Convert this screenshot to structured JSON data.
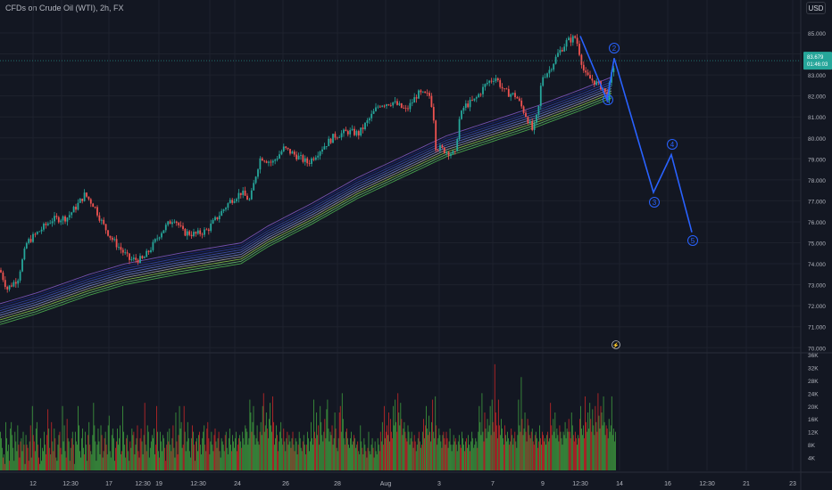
{
  "title": "CFDs on Crude Oil (WTI), 2h, FX",
  "currency": "USD",
  "colors": {
    "bg": "#131722",
    "up": "#26a69a",
    "down": "#ef5350",
    "vol_up": "#3e9a3e",
    "vol_down": "#c62828",
    "wave": "#2962ff",
    "grid": "#1e222d",
    "axis_text": "#b2b5be"
  },
  "price_axis": {
    "labels": [
      "85.000",
      "84.000",
      "83.000",
      "82.000",
      "81.000",
      "80.000",
      "79.000",
      "78.000",
      "77.000",
      "76.000",
      "75.000",
      "74.000",
      "73.000",
      "72.000",
      "71.000",
      "70.000"
    ],
    "current_price": "83.679",
    "current_time": "01:46:03"
  },
  "volume_axis": {
    "labels": [
      "36K",
      "32K",
      "28K",
      "24K",
      "20K",
      "16K",
      "12K",
      "8K",
      "4K"
    ]
  },
  "time_axis": [
    "12",
    "12:30",
    "17",
    "12:30",
    "19",
    "12:30",
    "24",
    "26",
    "28",
    "Aug",
    "3",
    "7",
    "9",
    "12:30",
    "14",
    "16",
    "12:30",
    "21",
    "23"
  ],
  "chart_data": [
    {
      "type": "candlestick",
      "title": "CFDs on Crude Oil (WTI), 2h, FX",
      "ylim": [
        70,
        85.5
      ],
      "price_path": [
        [
          0,
          73.7
        ],
        [
          8,
          72.8
        ],
        [
          20,
          73.3
        ],
        [
          30,
          75.0
        ],
        [
          40,
          75.4
        ],
        [
          58,
          76.1
        ],
        [
          75,
          76.2
        ],
        [
          85,
          76.7
        ],
        [
          95,
          77.3
        ],
        [
          105,
          76.8
        ],
        [
          115,
          75.9
        ],
        [
          125,
          75.2
        ],
        [
          135,
          74.7
        ],
        [
          145,
          74.2
        ],
        [
          160,
          74.2
        ],
        [
          170,
          74.8
        ],
        [
          180,
          75.5
        ],
        [
          195,
          76.2
        ],
        [
          205,
          75.5
        ],
        [
          220,
          75.4
        ],
        [
          232,
          75.6
        ],
        [
          245,
          76.3
        ],
        [
          258,
          77.0
        ],
        [
          270,
          77.4
        ],
        [
          280,
          77.0
        ],
        [
          288,
          78.5
        ],
        [
          292,
          79.1
        ],
        [
          305,
          78.8
        ],
        [
          318,
          79.5
        ],
        [
          330,
          79.2
        ],
        [
          345,
          78.8
        ],
        [
          360,
          79.5
        ],
        [
          375,
          80.1
        ],
        [
          390,
          80.3
        ],
        [
          402,
          80.2
        ],
        [
          412,
          80.8
        ],
        [
          425,
          81.6
        ],
        [
          440,
          81.7
        ],
        [
          455,
          81.3
        ],
        [
          468,
          82.1
        ],
        [
          482,
          82.0
        ],
        [
          486,
          80.9
        ],
        [
          488,
          79.6
        ],
        [
          498,
          79.4
        ],
        [
          510,
          79.2
        ],
        [
          514,
          80.8
        ],
        [
          520,
          81.5
        ],
        [
          532,
          81.8
        ],
        [
          545,
          82.6
        ],
        [
          555,
          82.9
        ],
        [
          565,
          82.2
        ],
        [
          578,
          82.0
        ],
        [
          590,
          81.0
        ],
        [
          597,
          80.3
        ],
        [
          603,
          81.3
        ],
        [
          607,
          82.9
        ],
        [
          615,
          83.2
        ],
        [
          625,
          84.0
        ],
        [
          635,
          84.6
        ],
        [
          645,
          84.8
        ],
        [
          655,
          83.0
        ],
        [
          665,
          82.7
        ],
        [
          675,
          82.4
        ],
        [
          680,
          81.9
        ],
        [
          686,
          83.2
        ],
        [
          690,
          83.8
        ]
      ],
      "ma_ribbon": [
        [
          0,
          71.6
        ],
        [
          40,
          72.1
        ],
        [
          100,
          73.0
        ],
        [
          140,
          73.5
        ],
        [
          200,
          74.0
        ],
        [
          270,
          74.5
        ],
        [
          300,
          75.3
        ],
        [
          350,
          76.4
        ],
        [
          400,
          77.6
        ],
        [
          450,
          78.6
        ],
        [
          500,
          79.6
        ],
        [
          550,
          80.3
        ],
        [
          600,
          81.0
        ],
        [
          650,
          81.8
        ],
        [
          685,
          82.4
        ]
      ],
      "elliott_wave": {
        "points": [
          [
            650,
            84.85
          ],
          [
            680,
            81.8
          ],
          [
            688,
            83.8
          ],
          [
            732,
            77.4
          ],
          [
            752,
            79.2
          ],
          [
            775,
            75.5
          ]
        ],
        "labels": [
          "1",
          "2",
          "3",
          "4",
          "5"
        ]
      }
    },
    {
      "type": "bar",
      "title": "Volume",
      "ylim": [
        0,
        36000
      ],
      "values": [
        12000,
        10000,
        7000,
        4000,
        5000,
        2000,
        15000,
        10000,
        6000,
        8000,
        3000,
        13000,
        15000,
        11000,
        7000,
        3000,
        12000,
        9000,
        6000,
        14000,
        8000,
        4000,
        9000,
        10000,
        6000,
        12000,
        8000,
        2000,
        11000,
        8000,
        7000,
        3000,
        9000,
        14000,
        4000,
        20000,
        11000,
        9000,
        6000,
        13000,
        15000,
        8000,
        4000,
        2000,
        10000,
        3000,
        7000,
        6000,
        12000,
        8000,
        5000,
        11000,
        19000,
        13000,
        7000,
        5000,
        15000,
        9000,
        6000,
        13000,
        10000,
        4000,
        3000,
        8000,
        11000,
        12000,
        7000,
        5000,
        20000,
        9000,
        14000,
        6000,
        4000,
        16000,
        10000,
        9000,
        3000,
        7000,
        10000,
        12000,
        8000,
        2000,
        12000,
        9000,
        8000,
        20000,
        14000,
        6000,
        4000,
        10000,
        13000,
        7000,
        5000,
        12000,
        8000,
        3000,
        11000,
        15000,
        8000,
        6000,
        5000,
        11000,
        21000,
        14000,
        9000,
        3000,
        8000,
        13000,
        9000,
        5000,
        14000,
        11000,
        4000,
        6000,
        10000,
        12000,
        8000,
        5000,
        14000,
        17000,
        6000,
        4000,
        11000,
        13000,
        10000,
        3000,
        7000,
        9000,
        13000,
        8000,
        10000,
        14000,
        5000,
        6000,
        20000,
        12000,
        8000,
        4000,
        10000,
        11000,
        6000,
        3000,
        9000,
        7000,
        13000,
        11000,
        12000,
        5000,
        8000,
        10000,
        14000,
        6000,
        4000,
        10000,
        13000,
        9000,
        5000,
        11000,
        21000,
        8000,
        6000,
        14000,
        12000,
        4000,
        7000,
        9000,
        11000,
        10000,
        13000,
        5000,
        8000,
        20000,
        12000,
        6000,
        4000,
        12000,
        9000,
        6000,
        11000,
        10000,
        7000,
        3000,
        8000,
        12000,
        9000,
        13000,
        8000,
        6000,
        10000,
        14000,
        7000,
        4000,
        18000,
        9000,
        5000,
        11000,
        20000,
        13000,
        15000,
        7000,
        8000,
        20000,
        12000,
        6000,
        9000,
        15000,
        10000,
        6000,
        4000,
        10000,
        14000,
        12000,
        8000,
        3000,
        9000,
        10000,
        6000,
        11000,
        12000,
        8000,
        5000,
        10000,
        12000,
        14000,
        8000,
        6000,
        13000,
        15000,
        10000,
        5000,
        9000,
        12000,
        8000,
        6000,
        11000,
        13000,
        9000,
        7000,
        10000,
        12000,
        6000,
        4000,
        10000,
        9000,
        8000,
        6000,
        11000,
        12000,
        7000,
        5000,
        10000,
        13000,
        8000,
        6000,
        11000,
        9000,
        7000,
        10000,
        12000,
        6000,
        8000,
        10000,
        11000,
        9000,
        7000,
        12000,
        10000,
        8000,
        14000,
        13000,
        12000,
        8000,
        10000,
        22000,
        18000,
        12000,
        15000,
        20000,
        11000,
        8000,
        10000,
        14000,
        9000,
        8000,
        12000,
        15000,
        11000,
        20000,
        24000,
        12000,
        14000,
        18000,
        13000,
        10000,
        16000,
        21000,
        14000,
        12000,
        23000,
        15000,
        8000,
        10000,
        14000,
        11000,
        6000,
        9000,
        12000,
        15000,
        10000,
        8000,
        13000,
        9000,
        6000,
        10000,
        12000,
        8000,
        11000,
        9000,
        7000,
        10000,
        12000,
        8000,
        6000,
        10000,
        9000,
        5000,
        8000,
        12000,
        10000,
        7000,
        6000,
        9000,
        11000,
        8000,
        5000,
        8000,
        12000,
        10000,
        6000,
        9000,
        15000,
        10000,
        8000,
        22000,
        12000,
        10000,
        18000,
        11000,
        14000,
        8000,
        20000,
        15000,
        11000,
        9000,
        12000,
        16000,
        10000,
        19000,
        22000,
        13000,
        9000,
        12000,
        11000,
        14000,
        8000,
        10000,
        18000,
        13000,
        7000,
        6000,
        10000,
        18000,
        20000,
        12000,
        24000,
        16000,
        10000,
        8000,
        12000,
        13000,
        10000,
        8000,
        7000,
        10000,
        12000,
        8000,
        9000,
        11000,
        10000,
        7000,
        8000,
        9000,
        6000,
        5000,
        14000,
        9000,
        7000,
        5000,
        10000,
        8000,
        6000,
        4000,
        7000,
        12000,
        6000,
        5000,
        8000,
        10000,
        7000,
        4000,
        9000,
        6000,
        5000,
        10000,
        8000,
        6000,
        12000,
        9000,
        15000,
        8000,
        20000,
        10000,
        12000,
        14000,
        11000,
        18000,
        9000,
        16000,
        12000,
        10000,
        20000,
        14000,
        22000,
        15000,
        12000,
        24000,
        18000,
        14000,
        21000,
        16000,
        11000,
        13000,
        15000,
        12000,
        10000,
        9000,
        14000,
        12000,
        8000,
        10000,
        12000,
        9000,
        7000,
        11000,
        9000,
        6000,
        8000,
        10000,
        12000,
        9000,
        7000,
        8000,
        12000,
        16000,
        10000,
        14000,
        20000,
        13000,
        11000,
        17000,
        12000,
        9000,
        15000,
        22000,
        12000,
        10000,
        23000,
        14000,
        8000,
        10000,
        13000,
        11000,
        9000,
        7000,
        11000,
        12000,
        10000,
        8000,
        12000,
        10000,
        7000,
        9000,
        13000,
        8000,
        6000,
        8000,
        11000,
        9000,
        10000,
        8000,
        6000,
        9000,
        11000,
        8000,
        7000,
        12000,
        10000,
        8000,
        6000,
        9000,
        10000,
        7000,
        11000,
        8000,
        6000,
        9000,
        12000,
        10000,
        7000,
        8000,
        10000,
        9000,
        7000,
        12000,
        20000,
        15000,
        11000,
        24000,
        12000,
        9000,
        18000,
        13000,
        10000,
        16000,
        12000,
        14000,
        20000,
        11000,
        22000,
        15000,
        12000,
        33000,
        18000,
        14000,
        10000,
        22000,
        14000,
        11000,
        16000,
        13000,
        10000,
        8000,
        14000,
        11000,
        9000,
        12000,
        10000,
        8000,
        9000,
        13000,
        11000,
        8000,
        10000,
        12000,
        9000,
        7000,
        11000,
        22000,
        14000,
        12000,
        29000,
        16000,
        11000,
        13000,
        18000,
        12000,
        9000,
        16000,
        14000,
        11000,
        10000,
        12000,
        13000,
        9000,
        8000,
        11000,
        12000,
        10000,
        7000,
        9000,
        14000,
        10000,
        8000,
        12000,
        11000,
        9000,
        10000,
        8000,
        11000,
        12000,
        9000,
        10000,
        21000,
        14000,
        11000,
        16000,
        12000,
        18000,
        10000,
        13000,
        11000,
        9000,
        14000,
        12000,
        10000,
        8000,
        12000,
        11000,
        15000,
        10000,
        13000,
        12000,
        16000,
        12000,
        10000,
        18000,
        14000,
        11000,
        9000,
        12000,
        10000,
        8000,
        11000,
        10000,
        16000,
        20000,
        13000,
        11000,
        14000,
        10000,
        23000,
        15000,
        12000,
        18000,
        13000,
        21000,
        16000,
        12000,
        19000,
        14000,
        11000,
        20000,
        15000,
        12000,
        24000,
        17000,
        13000,
        20000,
        18000,
        14000,
        23000,
        15000,
        11000,
        14000,
        13000,
        10000,
        16000,
        12000,
        14000,
        23000,
        11000,
        13000,
        9000,
        12000
      ]
    }
  ]
}
